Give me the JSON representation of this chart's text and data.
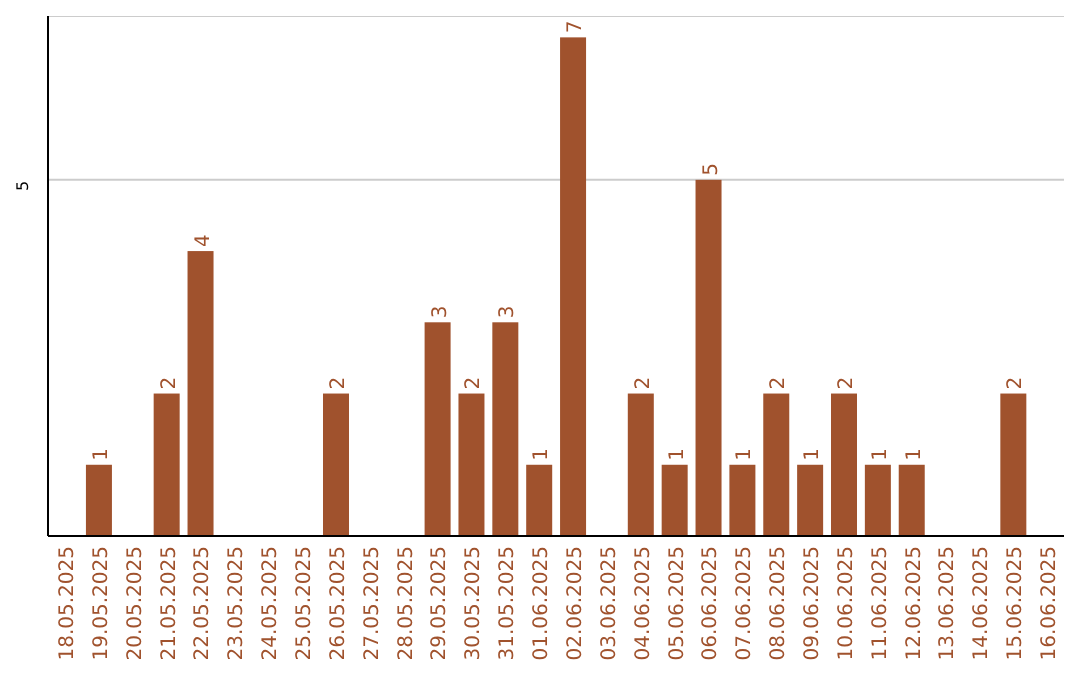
{
  "chart_data": {
    "type": "bar",
    "categories": [
      "18.05.2025",
      "19.05.2025",
      "20.05.2025",
      "21.05.2025",
      "22.05.2025",
      "23.05.2025",
      "24.05.2025",
      "25.05.2025",
      "26.05.2025",
      "27.05.2025",
      "28.05.2025",
      "29.05.2025",
      "30.05.2025",
      "31.05.2025",
      "01.06.2025",
      "02.06.2025",
      "03.06.2025",
      "04.06.2025",
      "05.06.2025",
      "06.06.2025",
      "07.06.2025",
      "08.06.2025",
      "09.06.2025",
      "10.06.2025",
      "11.06.2025",
      "12.06.2025",
      "13.06.2025",
      "14.06.2025",
      "15.06.2025",
      "16.06.2025"
    ],
    "values": [
      0,
      1,
      0,
      2,
      4,
      0,
      0,
      0,
      2,
      0,
      0,
      3,
      2,
      3,
      1,
      7,
      0,
      2,
      1,
      5,
      1,
      2,
      1,
      2,
      1,
      1,
      0,
      0,
      2,
      0
    ],
    "value_labels": [
      null,
      "1",
      null,
      "2",
      "4",
      null,
      null,
      null,
      "2",
      null,
      null,
      "3",
      "2",
      "3",
      "1",
      "7",
      null,
      "2",
      "1",
      "5",
      "1",
      "2",
      "1",
      "2",
      "1",
      "1",
      null,
      null,
      "2",
      null
    ],
    "color": "#a0522d",
    "ylim": [
      0,
      7.3
    ],
    "yticks": [
      5
    ],
    "grid": "y"
  }
}
